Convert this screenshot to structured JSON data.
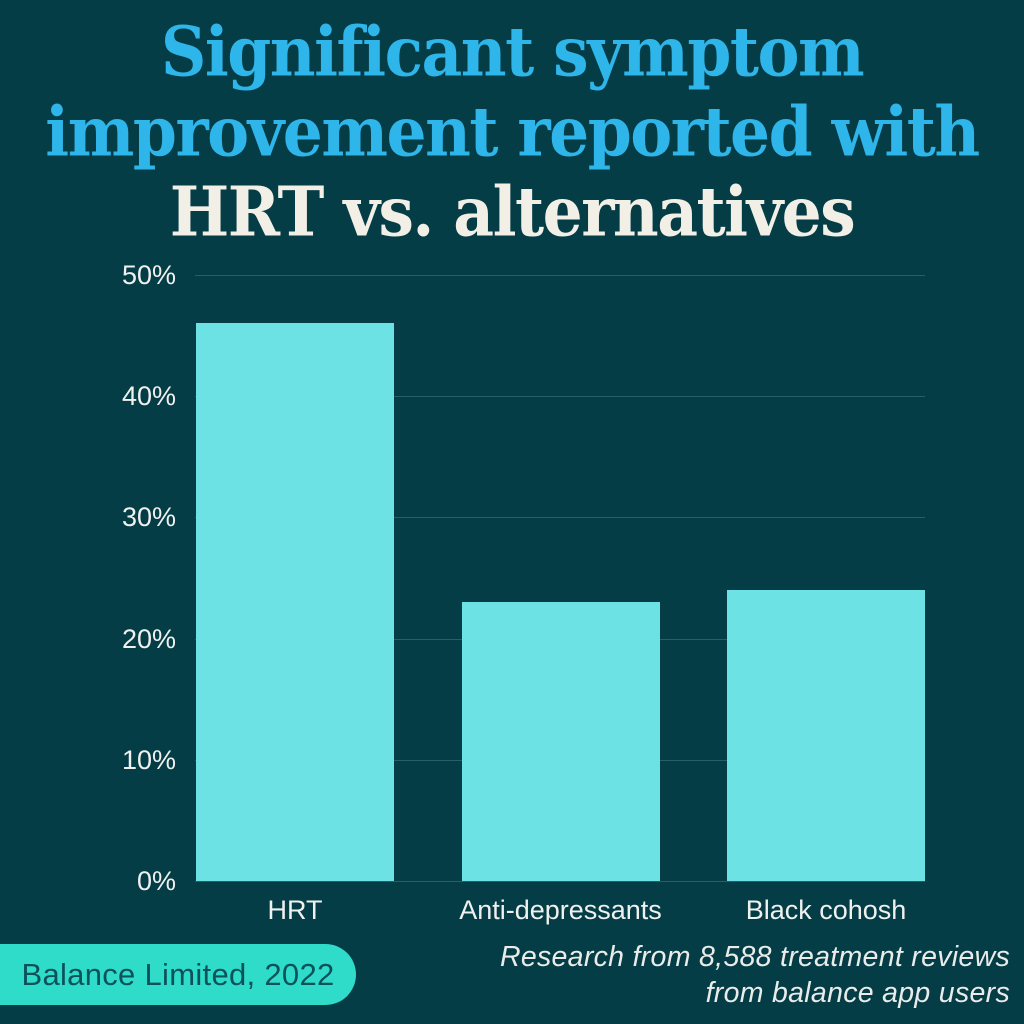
{
  "title": {
    "line1": "Significant symptom",
    "line2": "improvement reported with",
    "line3": "HRT vs. alternatives"
  },
  "chart_data": {
    "type": "bar",
    "title": "Significant symptom improvement reported with HRT vs. alternatives",
    "categories": [
      "HRT",
      "Anti-depressants",
      "Black cohosh"
    ],
    "values": [
      46,
      23,
      24
    ],
    "unit": "%",
    "ylabel": "",
    "xlabel": "",
    "ylim": [
      0,
      50
    ],
    "y_ticks": [
      "50%",
      "40%",
      "30%",
      "20%",
      "10%",
      "0%"
    ],
    "grid": true,
    "legend": "none",
    "bar_color": "#6DE2E4"
  },
  "footer": {
    "badge_label": "Balance Limited, 2022",
    "source_line1": "Research from 8,588 treatment reviews",
    "source_line2": "from balance app users"
  },
  "colors": {
    "background": "#053D47",
    "title_accent": "#2EB5EA",
    "title_secondary": "#F2EFE6",
    "bar_fill": "#6DE2E4",
    "badge_fill": "#2EDCC9",
    "badge_text": "#0D525B",
    "axis_text": "#EFF1EF",
    "gridline": "rgba(170,215,218,0.22)",
    "source_text": "#E9ECE9"
  }
}
